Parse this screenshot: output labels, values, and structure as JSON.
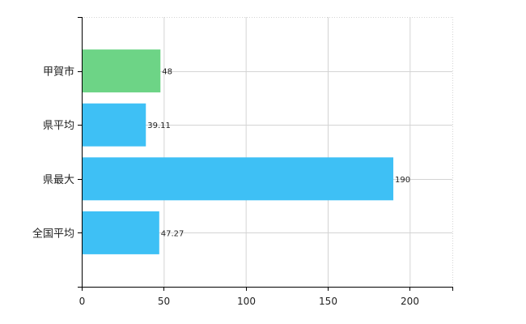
{
  "chart_data": {
    "type": "bar",
    "orientation": "horizontal",
    "categories": [
      "甲賀市",
      "県平均",
      "県最大",
      "全国平均"
    ],
    "values": [
      48,
      39.11,
      190,
      47.27
    ],
    "data_labels": [
      "48",
      "39.11",
      "190",
      "47.27"
    ],
    "bar_colors": [
      "#6dd486",
      "#3ec0f5",
      "#3ec0f5",
      "#3ec0f5"
    ],
    "xlim": [
      0,
      226
    ],
    "x_ticks": [
      0,
      50,
      100,
      150,
      200
    ],
    "x_tick_labels": [
      "0",
      "50",
      "100",
      "150",
      "200"
    ],
    "grid": true,
    "legend": "none"
  },
  "colors": {
    "highlight": "#6dd486",
    "bar": "#3ec0f5",
    "grid": "#d4d4d4",
    "axis": "#000000"
  }
}
